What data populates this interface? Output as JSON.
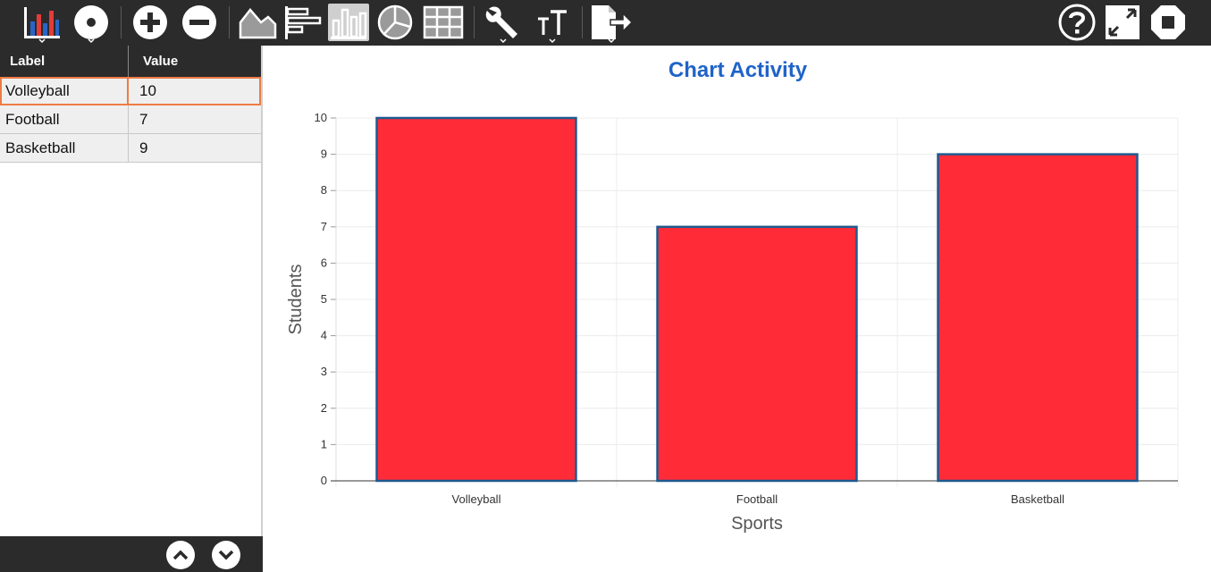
{
  "toolbar": {
    "left_buttons": [
      {
        "name": "chart-type-button",
        "icon": "bar-chart-color-icon"
      },
      {
        "name": "point-style-button",
        "icon": "point-icon"
      },
      {
        "name": "add-row-button",
        "icon": "plus-circle-icon"
      },
      {
        "name": "remove-row-button",
        "icon": "minus-circle-icon"
      },
      {
        "name": "area-chart-button",
        "icon": "area-chart-icon"
      },
      {
        "name": "horizontal-bar-button",
        "icon": "horizontal-bar-icon"
      },
      {
        "name": "vertical-bar-button",
        "icon": "vertical-bar-icon"
      },
      {
        "name": "pie-chart-button",
        "icon": "pie-chart-icon"
      },
      {
        "name": "table-view-button",
        "icon": "grid-icon"
      },
      {
        "name": "settings-button",
        "icon": "wrench-icon"
      },
      {
        "name": "text-size-button",
        "icon": "text-size-icon"
      },
      {
        "name": "export-button",
        "icon": "export-icon"
      }
    ],
    "right_buttons": [
      {
        "name": "help-button",
        "icon": "help-icon"
      },
      {
        "name": "fullscreen-button",
        "icon": "expand-icon"
      },
      {
        "name": "stop-button",
        "icon": "stop-icon"
      }
    ]
  },
  "table": {
    "headers": {
      "label": "Label",
      "value": "Value"
    },
    "rows": [
      {
        "label": "Volleyball",
        "value": "10"
      },
      {
        "label": "Football",
        "value": "7"
      },
      {
        "label": "Basketball",
        "value": "9"
      }
    ],
    "selected_row": 0
  },
  "pager": {
    "up_icon": "chevron-up-icon",
    "down_icon": "chevron-down-icon"
  },
  "colors": {
    "bar_fill": "#ff2b37",
    "bar_border": "#1f5a8f",
    "title": "#1f63c9",
    "toolbar_bg": "#2b2b2b",
    "selection": "#ef7b45"
  },
  "chart_data": {
    "type": "bar",
    "title": "Chart Activity",
    "xlabel": "Sports",
    "ylabel": "Students",
    "categories": [
      "Volleyball",
      "Football",
      "Basketball"
    ],
    "values": [
      10,
      7,
      9
    ],
    "ylim": [
      0,
      10
    ],
    "yticks": [
      0,
      1,
      2,
      3,
      4,
      5,
      6,
      7,
      8,
      9,
      10
    ],
    "grid": true,
    "legend": "none"
  }
}
